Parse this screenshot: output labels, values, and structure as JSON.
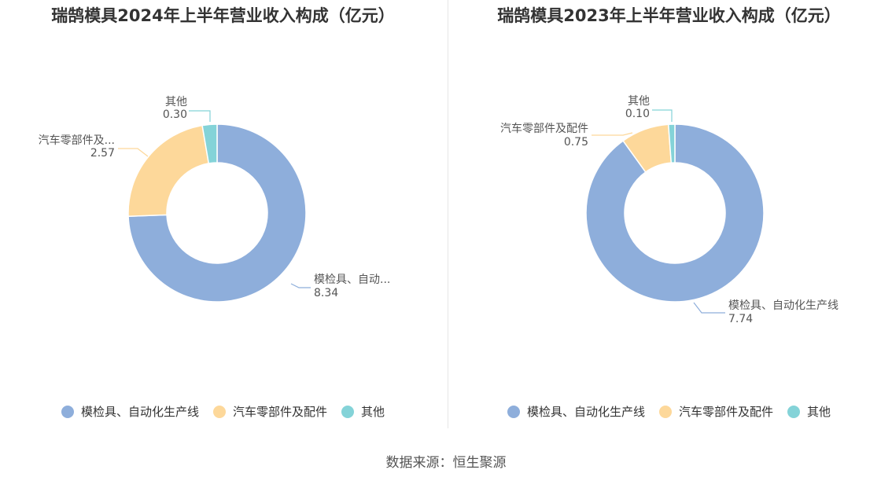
{
  "colors": {
    "mold": "#8eaedb",
    "auto_parts": "#fdd89a",
    "other": "#84d3d8"
  },
  "source": "数据来源：恒生聚源",
  "chart_data": [
    {
      "type": "pie",
      "donut": true,
      "title": "瑞鹄模具2024年上半年营业收入构成（亿元）",
      "categories": [
        "模检具、自动化生产线",
        "汽车零部件及配件",
        "其他"
      ],
      "values": [
        8.34,
        2.57,
        0.3
      ],
      "display_labels": [
        "模检具、自动...",
        "汽车零部件及...",
        "其他"
      ],
      "value_labels": [
        "8.34",
        "2.57",
        "0.30"
      ],
      "legend": "bottom"
    },
    {
      "type": "pie",
      "donut": true,
      "title": "瑞鹄模具2023年上半年营业收入构成（亿元）",
      "categories": [
        "模检具、自动化生产线",
        "汽车零部件及配件",
        "其他"
      ],
      "values": [
        7.74,
        0.75,
        0.1
      ],
      "display_labels": [
        "模检具、自动化生产线",
        "汽车零部件及配件",
        "其他"
      ],
      "value_labels": [
        "7.74",
        "0.75",
        "0.10"
      ],
      "legend": "bottom"
    }
  ]
}
